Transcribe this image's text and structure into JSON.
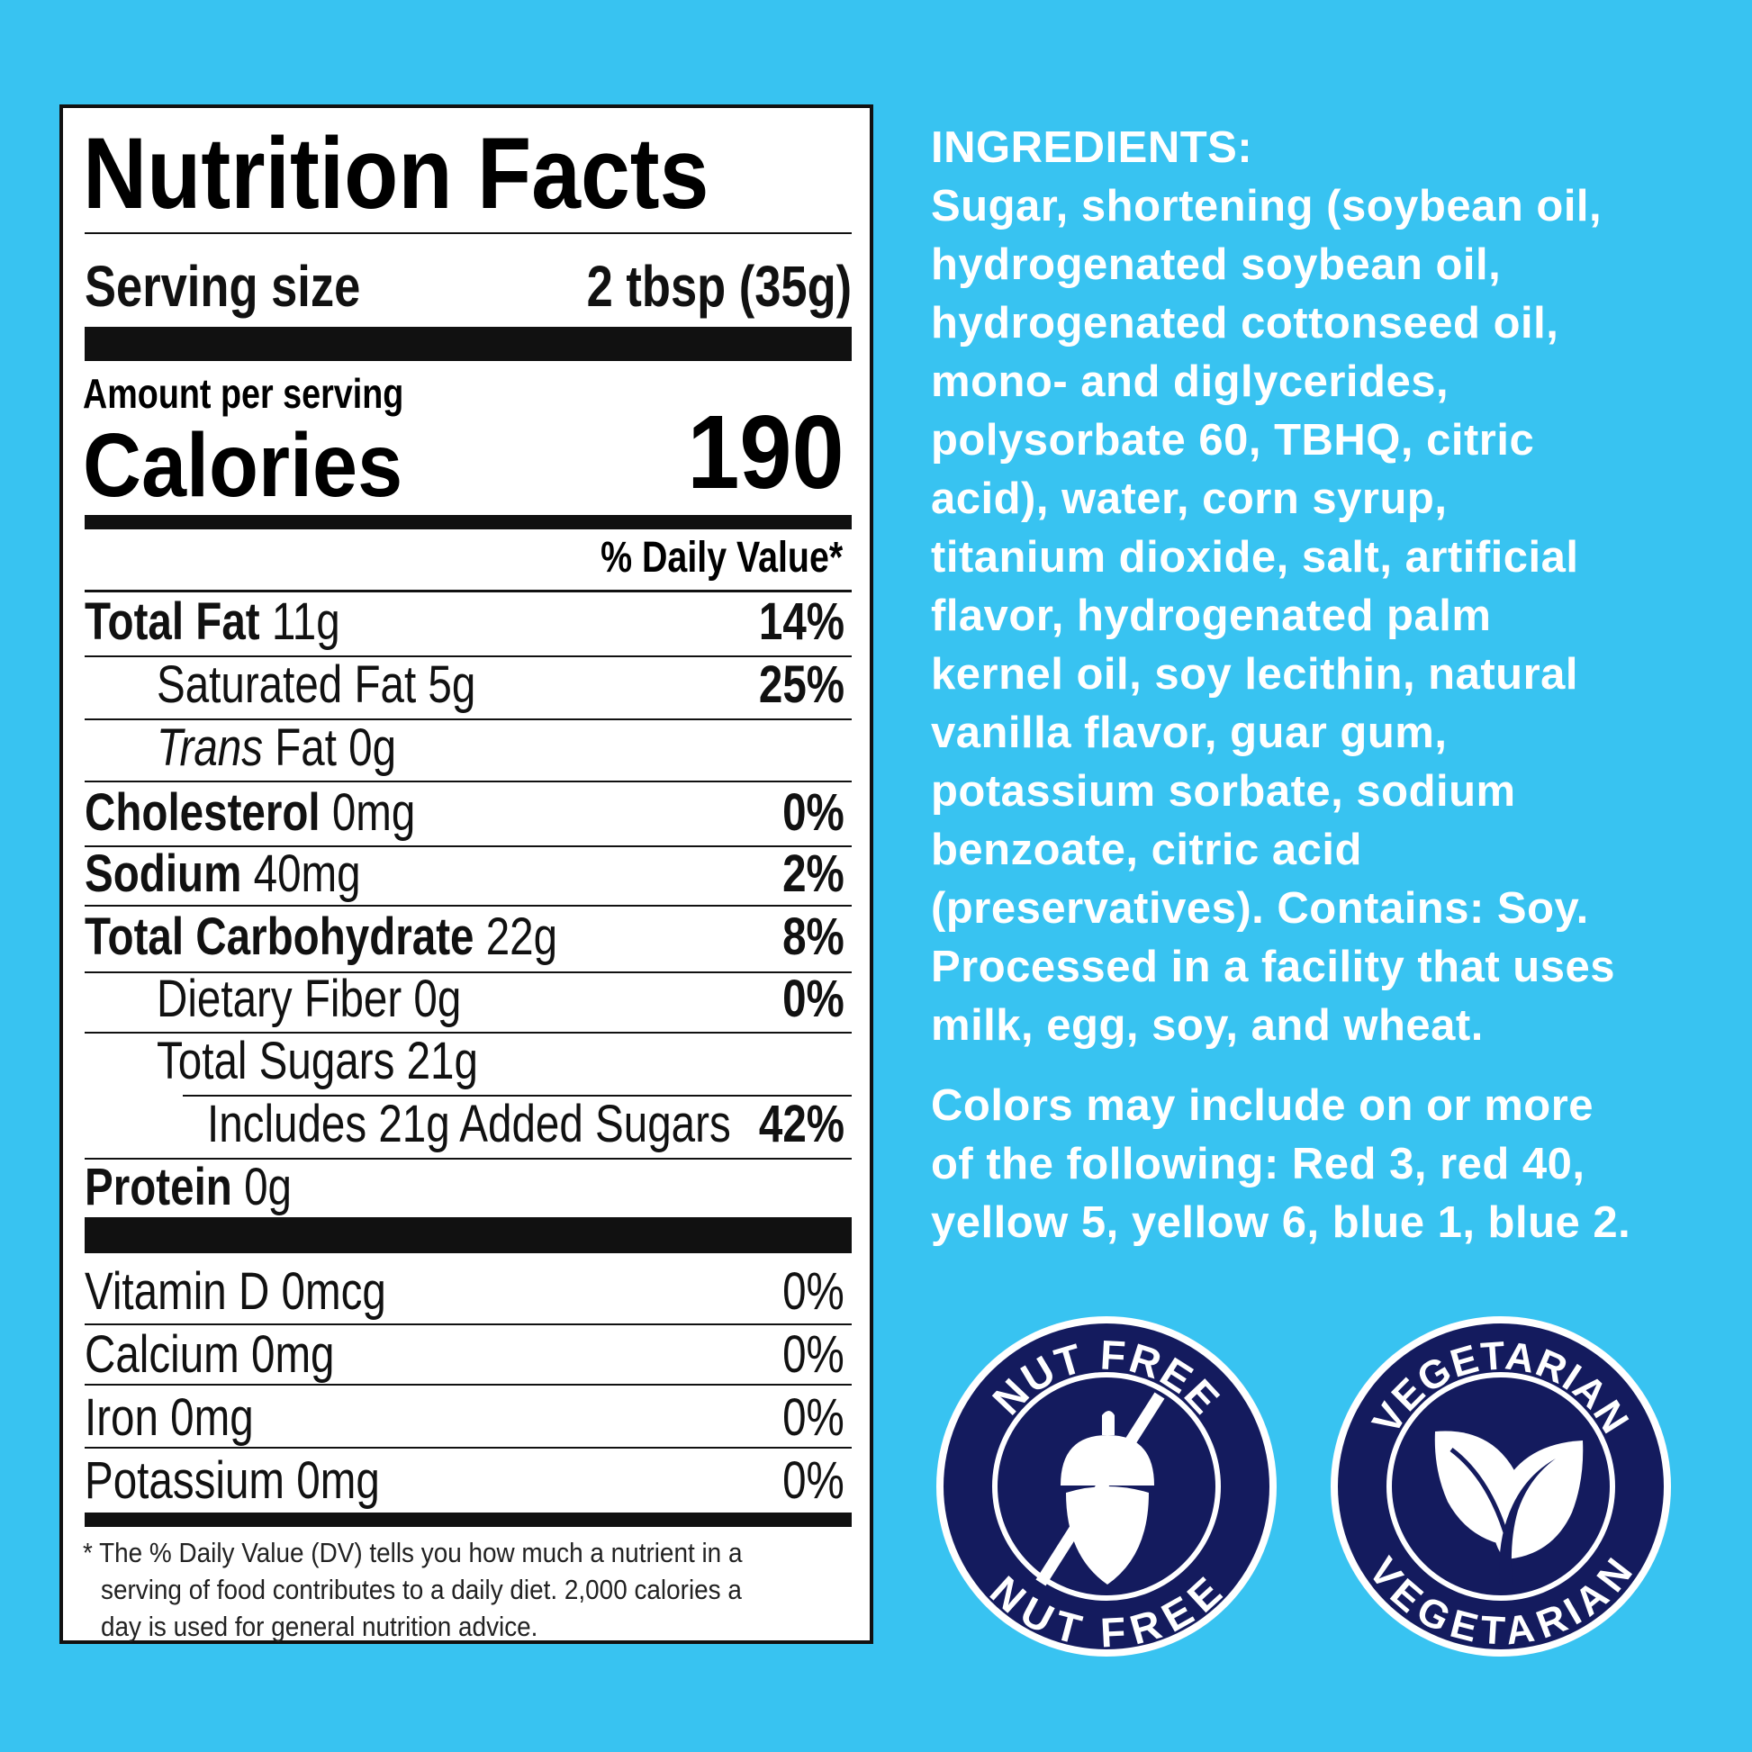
{
  "nutrition": {
    "title": "Nutrition Facts",
    "serving_size_label": "Serving size",
    "serving_size_value": "2 tbsp (35g)",
    "amount_per_serving": "Amount per serving",
    "calories_label": "Calories",
    "calories_value": "190",
    "daily_value_header": "% Daily Value*",
    "nutrients": [
      {
        "name": "Total Fat",
        "amount": "11g",
        "dv": "14%"
      },
      {
        "name": "Saturated Fat 5g",
        "dv": "25%"
      },
      {
        "name_italic": "Trans",
        "name": " Fat 0g"
      },
      {
        "name": "Cholesterol",
        "amount": "0mg",
        "dv": "0%"
      },
      {
        "name": "Sodium",
        "amount": "40mg",
        "dv": "2%"
      },
      {
        "name": "Total Carbohydrate",
        "amount": "22g",
        "dv": "8%"
      },
      {
        "name": "Dietary Fiber 0g",
        "dv": "0%"
      },
      {
        "name": "Total Sugars 21g"
      },
      {
        "name": "Includes 21g Added Sugars",
        "dv": "42%"
      },
      {
        "name": "Protein",
        "amount": "0g"
      }
    ],
    "vitamins": [
      {
        "name": "Vitamin D 0mcg",
        "dv": "0%"
      },
      {
        "name": "Calcium 0mg",
        "dv": "0%"
      },
      {
        "name": "Iron 0mg",
        "dv": "0%"
      },
      {
        "name": "Potassium 0mg",
        "dv": "0%"
      }
    ],
    "footnote": [
      "* The % Daily Value (DV) tells you how much a nutrient in a",
      "serving of food contributes to a daily diet. 2,000 calories a",
      "day is used for general nutrition advice."
    ]
  },
  "ingredients": {
    "text": "INGREDIENTS:\nSugar, shortening (soybean oil,\nhydrogenated soybean oil,\nhydrogenated cottonseed oil,\nmono- and diglycerides,\npolysorbate 60, TBHQ, citric\nacid), water, corn syrup,\ntitanium dioxide, salt, artificial\nflavor, hydrogenated palm\nkernel oil, soy lecithin, natural\nvanilla flavor, guar gum,\npotassium sorbate, sodium\nbenzoate, citric acid\n(preservatives). Contains: Soy.\nProcessed in a facility that uses\nmilk, egg, soy, and wheat.",
    "colors_note": "Colors may include on or more\nof the following: Red 3, red 40,\nyellow 5, yellow 6, blue 1, blue 2."
  },
  "badges": {
    "nut_free": {
      "top": "NUT FREE",
      "bottom": "NUT FREE",
      "icon": "crossed-acorn-icon"
    },
    "vegetarian": {
      "top": "VEGETARIAN",
      "bottom": "VEGETARIAN",
      "icon": "leaves-icon"
    }
  },
  "colors": {
    "background": "#38c3f1",
    "badge_navy": "#141b5e",
    "label_text": "#111111"
  }
}
